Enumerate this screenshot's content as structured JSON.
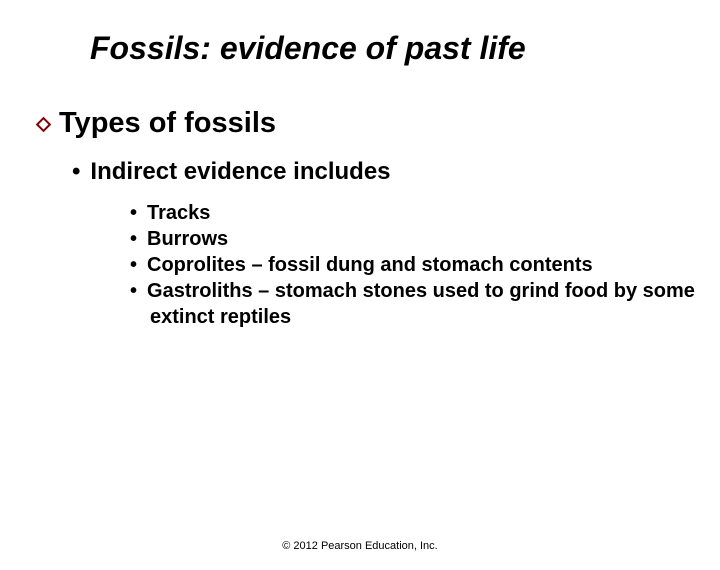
{
  "title": "Fossils: evidence of past life",
  "section": "Types of fossils",
  "sub1": "Indirect evidence includes",
  "items": [
    {
      "text": "Tracks"
    },
    {
      "text": "Burrows"
    },
    {
      "text": "Coprolites – fossil dung and stomach contents"
    },
    {
      "text": "Gastroliths – stomach stones used to grind food by some extinct reptiles"
    }
  ],
  "footer": "© 2012 Pearson Education, Inc.",
  "colors": {
    "background": "#ffffff",
    "text": "#000000",
    "diamond_border": "#800000"
  },
  "typography": {
    "title_fontsize": 32,
    "section_fontsize": 29,
    "sub1_fontsize": 24,
    "sub2_fontsize": 20,
    "footer_fontsize": 11,
    "font_family": "Arial"
  }
}
